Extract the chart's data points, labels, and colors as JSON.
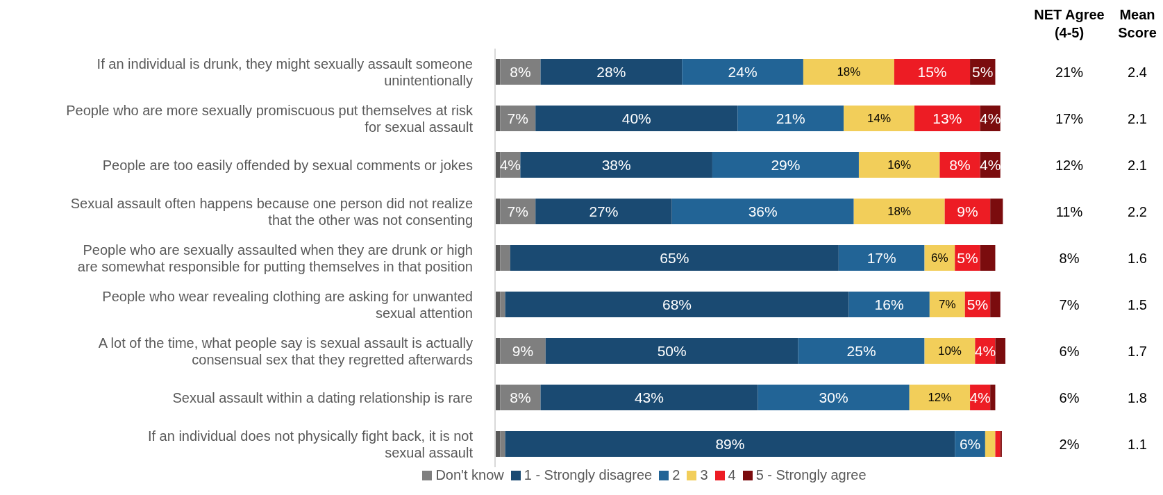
{
  "chart_data": {
    "type": "bar",
    "orientation": "horizontal",
    "stacked": true,
    "legend": "bottom",
    "grid": false,
    "xlim": [
      0,
      101
    ],
    "tick_labels": "y",
    "categories": [
      "If an individual is drunk, they might sexually assault someone unintentionally",
      "People who are more sexually promiscuous put themselves at risk for sexual assault",
      "People are too easily offended by sexual comments or jokes",
      "Sexual assault often happens because one person did not realize that the other was not consenting",
      "People who are sexually assaulted when they are drunk or high are somewhat responsible for putting themselves in that position",
      "People who wear revealing clothing are asking for unwanted sexual attention",
      "A lot of the time, what people say is sexual assault is actually consensual sex that they regretted afterwards",
      "Sexual assault within a dating relationship is rare",
      "If an individual does not physically fight back, it is not sexual assault"
    ],
    "series": [
      {
        "color": "#595959",
        "values": [
          1,
          1,
          1,
          1,
          1,
          1,
          1,
          1,
          1
        ],
        "value_labels": [
          null,
          null,
          null,
          null,
          null,
          null,
          null,
          null,
          null
        ]
      },
      {
        "name": "Don't know",
        "color": "#7f7f7f",
        "values": [
          8,
          7,
          4,
          7,
          2,
          1,
          9,
          8,
          1
        ],
        "value_labels": [
          "8%",
          "7%",
          "4%",
          "7%",
          null,
          null,
          "9%",
          "8%",
          null
        ]
      },
      {
        "name": "1 - Strongly disagree",
        "color": "#1a4a72",
        "values": [
          28,
          40,
          38,
          27,
          65,
          68,
          50,
          43,
          89
        ],
        "value_labels": [
          "28%",
          "40%",
          "38%",
          "27%",
          "65%",
          "68%",
          "50%",
          "43%",
          "89%"
        ]
      },
      {
        "name": "2",
        "color": "#226496",
        "values": [
          24,
          21,
          29,
          36,
          17,
          16,
          25,
          30,
          6
        ],
        "value_labels": [
          "24%",
          "21%",
          "29%",
          "36%",
          "17%",
          "16%",
          "25%",
          "30%",
          "6%"
        ]
      },
      {
        "name": "3",
        "color": "#f2ce5a",
        "values": [
          18,
          14,
          16,
          18,
          6,
          7,
          10,
          12,
          2
        ],
        "value_labels": [
          "18%",
          "14%",
          "16%",
          "18%",
          "6%",
          "7%",
          "10%",
          "12%",
          null
        ]
      },
      {
        "name": "4",
        "color": "#ed1c24",
        "values": [
          15,
          13,
          8,
          9,
          5,
          5,
          4,
          4,
          1
        ],
        "value_labels": [
          "15%",
          "13%",
          "8%",
          "9%",
          "5%",
          "5%",
          "4%",
          "4%",
          null
        ]
      },
      {
        "name": "5 - Strongly agree",
        "color": "#7b0c0e",
        "values": [
          5,
          4,
          4,
          2.5,
          3,
          2,
          2,
          1,
          0.3
        ],
        "value_labels": [
          "5%",
          "4%",
          "4%",
          null,
          null,
          null,
          null,
          null,
          null
        ]
      }
    ],
    "annotations": [
      "NET Agree (4-5)",
      "Mean Score",
      "21%",
      "2.4",
      "17%",
      "2.1",
      "12%",
      "2.1",
      "11%",
      "2.2",
      "8%",
      "1.6",
      "7%",
      "1.5",
      "6%",
      "1.7",
      "6%",
      "1.8",
      "2%",
      "1.1"
    ]
  }
}
